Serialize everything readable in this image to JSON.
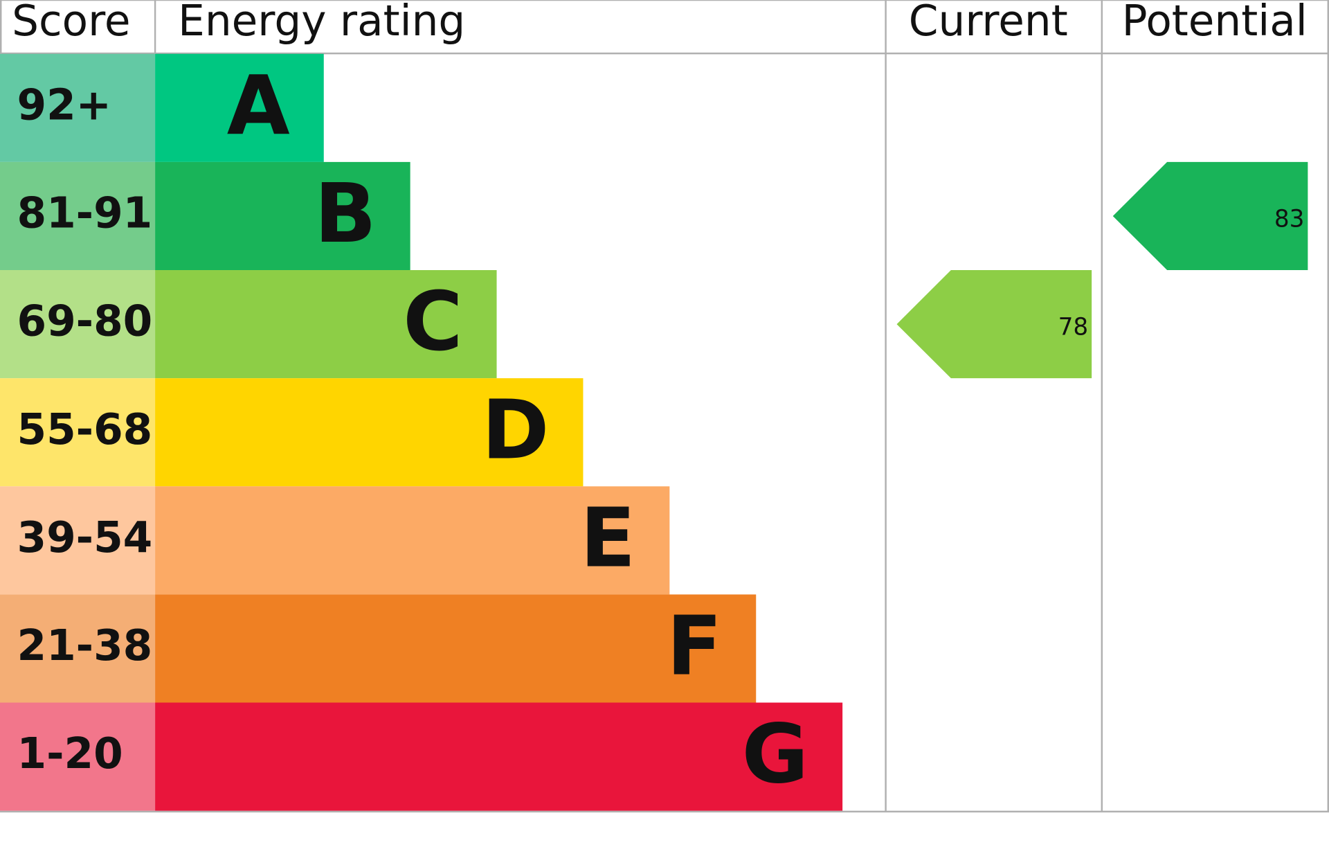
{
  "chart_data": {
    "type": "epc",
    "headers": {
      "score": "Score",
      "rating": "Energy rating",
      "current": "Current",
      "potential": "Potential"
    },
    "bands": [
      {
        "score": "92+",
        "letter": "A",
        "color": "#00c781",
        "score_color": "#63c9a4"
      },
      {
        "score": "81-91",
        "letter": "B",
        "color": "#19b459",
        "score_color": "#74cc8b"
      },
      {
        "score": "69-80",
        "letter": "C",
        "color": "#8dce46",
        "score_color": "#b3e088"
      },
      {
        "score": "55-68",
        "letter": "D",
        "color": "#ffd500",
        "score_color": "#fee56a"
      },
      {
        "score": "39-54",
        "letter": "E",
        "color": "#fcaa65",
        "score_color": "#fec79e"
      },
      {
        "score": "21-38",
        "letter": "F",
        "color": "#ef8023",
        "score_color": "#f4ae75"
      },
      {
        "score": "1-20",
        "letter": "G",
        "color": "#e9153b",
        "score_color": "#f2768b"
      }
    ],
    "current": {
      "value": 78
    },
    "potential": {
      "value": 83
    }
  }
}
